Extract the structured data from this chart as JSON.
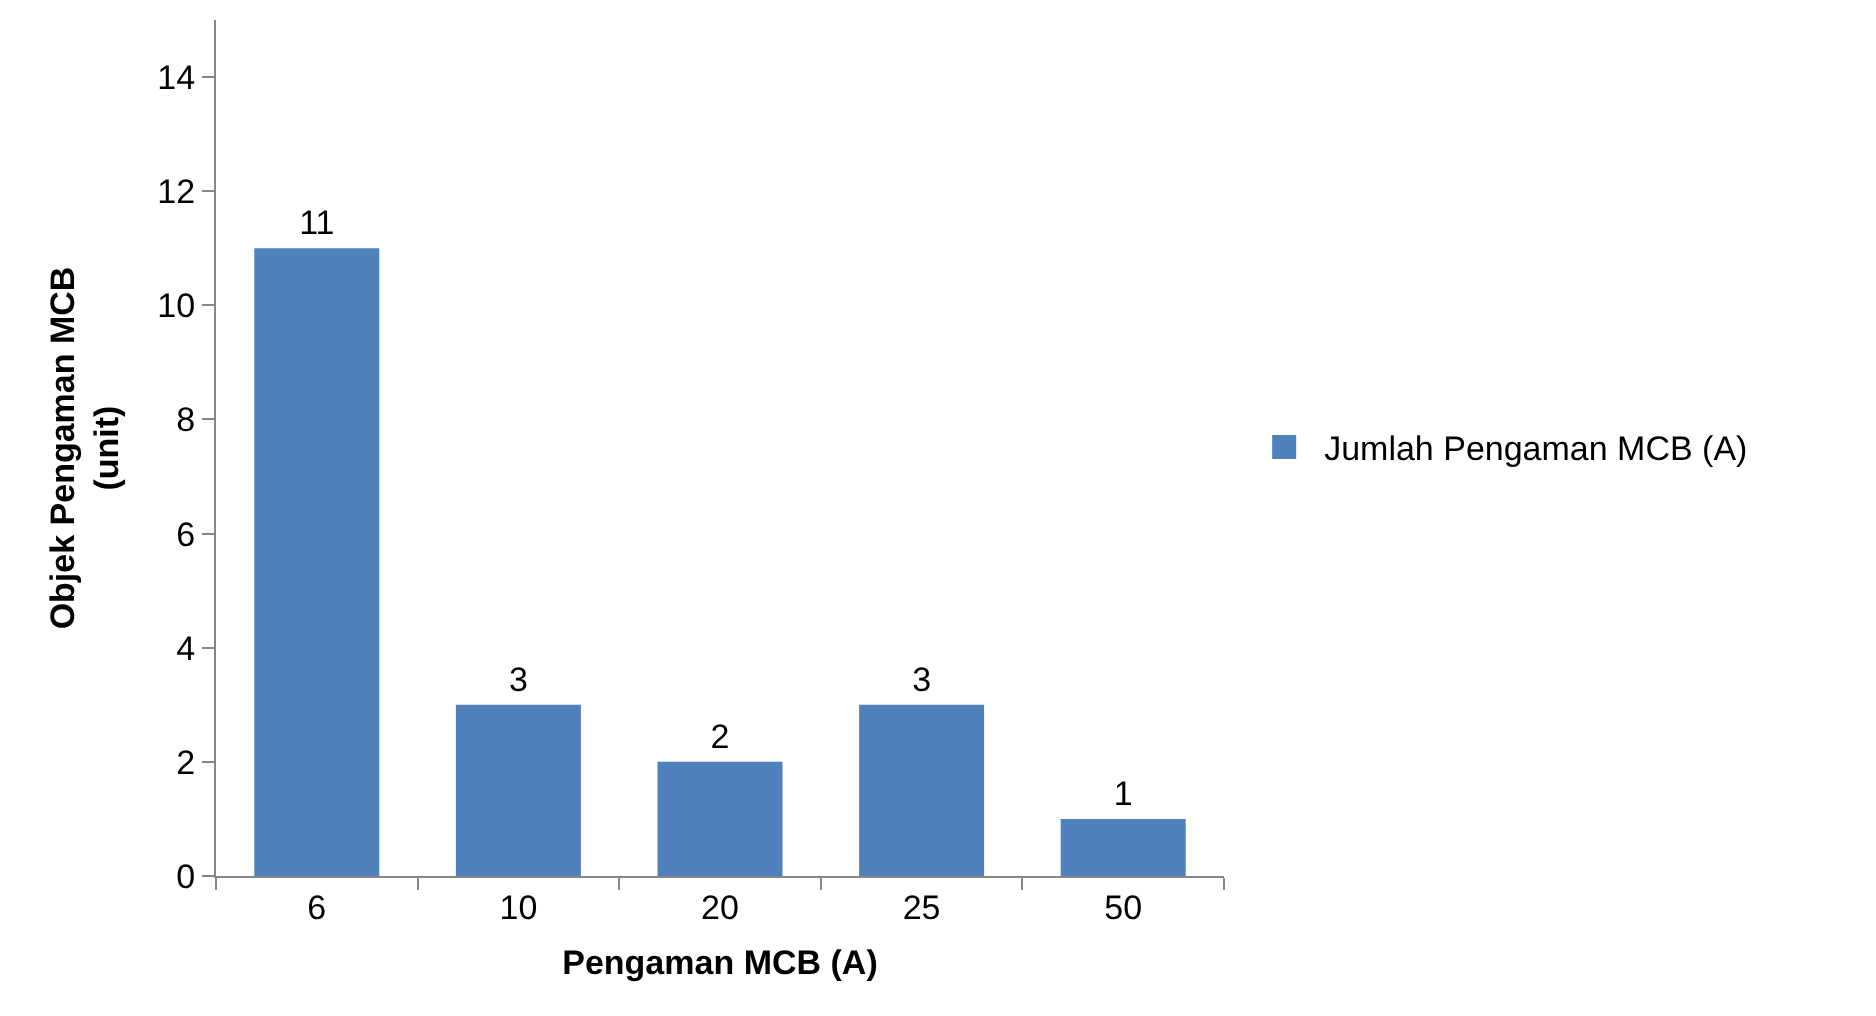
{
  "chart_data": {
    "type": "bar",
    "xlabel": "Pengaman MCB (A)",
    "ylabel": "Objek Pengaman MCB\n(unit)",
    "categories": [
      "6",
      "10",
      "20",
      "25",
      "50"
    ],
    "series": [
      {
        "name": "Jumlah Pengaman MCB (A)",
        "color": "#4f81bd",
        "values": [
          11,
          3,
          2,
          3,
          1
        ]
      }
    ],
    "ylim": [
      0,
      15
    ],
    "yticks": [
      0,
      2,
      4,
      6,
      8,
      10,
      12,
      14
    ],
    "data_labels": true,
    "grid": false,
    "legend": "right"
  }
}
